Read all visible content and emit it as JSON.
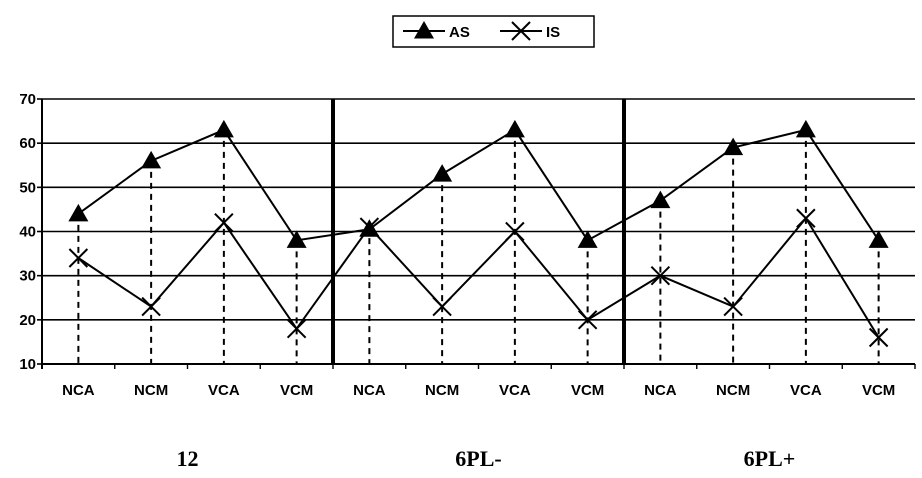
{
  "chart_data": {
    "type": "line",
    "title": "",
    "xlabel": "",
    "ylabel": "",
    "ylim": [
      10,
      70
    ],
    "yticks": [
      10,
      20,
      30,
      40,
      50,
      60,
      70
    ],
    "grid": "horizontal",
    "legend_position": "top-center",
    "groups": [
      "12",
      "6PL-",
      "6PL+"
    ],
    "categories": [
      "NCA",
      "NCM",
      "VCA",
      "VCM",
      "NCA",
      "NCM",
      "VCA",
      "VCM",
      "NCA",
      "NCM",
      "VCA",
      "VCM"
    ],
    "series": [
      {
        "name": "AS",
        "marker": "triangle",
        "values": [
          44,
          56,
          63,
          38,
          40.5,
          53,
          63,
          38,
          47,
          59,
          63,
          38
        ]
      },
      {
        "name": "IS",
        "marker": "x",
        "values": [
          34,
          23,
          42,
          18,
          41,
          23,
          40,
          20,
          30,
          23,
          43,
          16
        ]
      }
    ]
  }
}
